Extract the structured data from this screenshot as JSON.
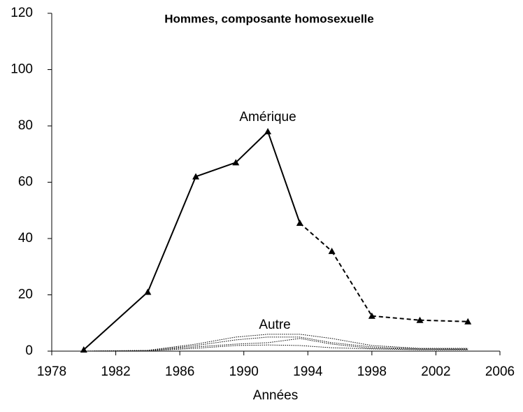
{
  "chart_data": {
    "type": "line",
    "title": "Hommes, composante homosexuelle",
    "x_label": "Années",
    "x": [
      1980,
      1984,
      1987,
      1989.5,
      1991.5,
      1993.5,
      1995.5,
      1998,
      2001,
      2004
    ],
    "series": [
      {
        "name": "Amérique",
        "color": "#000000",
        "marker": "triangle",
        "segment_styles": [
          "solid",
          "solid",
          "solid",
          "solid",
          "solid",
          "dashed",
          "dashed",
          "dashed",
          "dashed"
        ],
        "values": [
          0.5,
          21,
          62,
          67,
          78,
          45.5,
          35.5,
          12.5,
          11,
          10.5
        ]
      },
      {
        "color": "#000000",
        "style": "dotted",
        "values": [
          0,
          0.3,
          2.5,
          5,
          6,
          6,
          4.5,
          2,
          1,
          1
        ]
      },
      {
        "color": "#000000",
        "style": "dotted",
        "values": [
          0,
          0.2,
          2,
          4,
          5,
          5,
          3,
          1.5,
          0.8,
          0.8
        ]
      },
      {
        "color": "#000000",
        "style": "dotted",
        "values": [
          0,
          0.1,
          1.5,
          2.5,
          3,
          4.5,
          2.5,
          1,
          0.7,
          0.6
        ]
      },
      {
        "color": "#000000",
        "style": "dotted",
        "values": [
          0,
          0.1,
          1,
          2,
          2.2,
          2,
          1.2,
          0.8,
          0.5,
          0.5
        ]
      }
    ],
    "annotations": [
      "Autre"
    ],
    "xlim": [
      1978,
      2006
    ],
    "xticks": [
      1978,
      1982,
      1986,
      1990,
      1994,
      1998,
      2002,
      2006
    ],
    "ylim": [
      0,
      120
    ],
    "yticks": [
      0,
      20,
      40,
      60,
      80,
      100,
      120
    ],
    "grid": false
  }
}
